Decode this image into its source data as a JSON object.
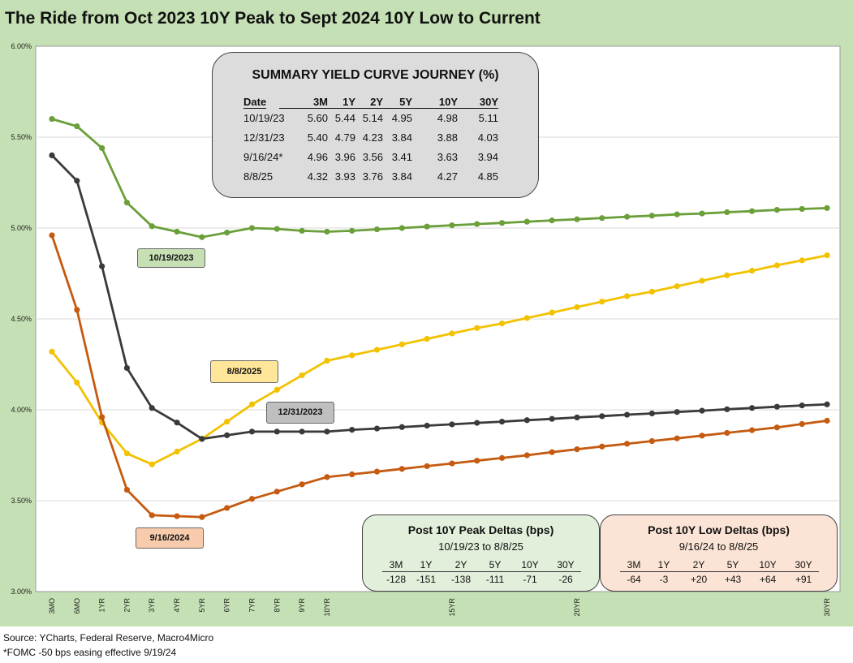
{
  "title": "The Ride from Oct 2023 10Y Peak to Sept 2024 10Y Low to Current",
  "source_line": "Source: YCharts, Federal Reserve, Macro4Micro",
  "footnote": "*FOMC -50 bps easing effective  9/19/24",
  "summary": {
    "heading": "SUMMARY YIELD CURVE JOURNEY (%)",
    "columns": [
      "Date",
      "3M",
      "1Y",
      "2Y",
      "5Y",
      "10Y",
      "30Y"
    ],
    "rows": [
      [
        "10/19/23",
        "5.60",
        "5.44",
        "5.14",
        "4.95",
        "4.98",
        "5.11"
      ],
      [
        "12/31/23",
        "5.40",
        "4.79",
        "4.23",
        "3.84",
        "3.88",
        "4.03"
      ],
      [
        "9/16/24*",
        "4.96",
        "3.96",
        "3.56",
        "3.41",
        "3.63",
        "3.94"
      ],
      [
        "8/8/25",
        "4.32",
        "3.93",
        "3.76",
        "3.84",
        "4.27",
        "4.85"
      ]
    ]
  },
  "peak_deltas": {
    "heading": "Post 10Y Peak Deltas (bps)",
    "subheading": "10/19/23 to 8/8/25",
    "columns": [
      "3M",
      "1Y",
      "2Y",
      "5Y",
      "10Y",
      "30Y"
    ],
    "values": [
      "-128",
      "-151",
      "-138",
      "-111",
      "-71",
      "-26"
    ]
  },
  "low_deltas": {
    "heading": "Post 10Y Low Deltas (bps)",
    "subheading": "9/16/24 to 8/8/25",
    "columns": [
      "3M",
      "1Y",
      "2Y",
      "5Y",
      "10Y",
      "30Y"
    ],
    "values": [
      "-64",
      "-3",
      "+20",
      "+43",
      "+64",
      "+91"
    ]
  },
  "colors": {
    "background": "#c5e0b4",
    "series_2023_10": "#6a9f3a",
    "series_2023_12": "#3a3a3a",
    "series_2024_09": "#c55a11",
    "series_2025_08": "#f2c200",
    "summary_box": "#dcdcdc",
    "peak_box": "#e2efda",
    "low_box": "#fbe4d5"
  },
  "chart_data": {
    "type": "line",
    "x": [
      "3MO",
      "6MO",
      "1YR",
      "2YR",
      "3YR",
      "4YR",
      "5YR",
      "6YR",
      "7YR",
      "8YR",
      "9YR",
      "10YR",
      "11YR",
      "12YR",
      "13YR",
      "14YR",
      "15YR",
      "16YR",
      "17YR",
      "18YR",
      "19YR",
      "20YR",
      "21YR",
      "22YR",
      "23YR",
      "24YR",
      "25YR",
      "26YR",
      "27YR",
      "28YR",
      "29YR",
      "30YR"
    ],
    "x_tick_labels": [
      "3MO",
      "6MO",
      "1YR",
      "2YR",
      "3YR",
      "4YR",
      "5YR",
      "6YR",
      "7YR",
      "8YR",
      "9YR",
      "10YR",
      "",
      "",
      "",
      "",
      "15YR",
      "",
      "",
      "",
      "",
      "20YR",
      "",
      "",
      "",
      "",
      "",
      "",
      "",
      "",
      "",
      "30YR"
    ],
    "ylim": [
      3.0,
      6.0
    ],
    "y_ticks": [
      "3.00%",
      "3.50%",
      "4.00%",
      "4.50%",
      "5.00%",
      "5.50%",
      "6.00%"
    ],
    "series": [
      {
        "name": "10/19/2023",
        "color": "#6a9f3a",
        "label_bg": "#c6e0b4",
        "values": [
          5.6,
          5.56,
          5.44,
          5.14,
          5.01,
          4.98,
          4.95,
          4.975,
          5.0,
          4.995,
          4.985,
          4.98,
          4.985,
          4.993,
          5.0,
          5.008,
          5.015,
          5.022,
          5.028,
          5.035,
          5.042,
          5.048,
          5.055,
          5.062,
          5.068,
          5.075,
          5.08,
          5.087,
          5.093,
          5.1,
          5.105,
          5.11
        ]
      },
      {
        "name": "8/8/2025",
        "color": "#f2c200",
        "label_bg": "#ffe699",
        "values": [
          4.32,
          4.15,
          3.93,
          3.76,
          3.7,
          3.77,
          3.84,
          3.935,
          4.03,
          4.11,
          4.19,
          4.27,
          4.3,
          4.33,
          4.36,
          4.39,
          4.42,
          4.45,
          4.475,
          4.505,
          4.535,
          4.565,
          4.595,
          4.625,
          4.65,
          4.68,
          4.71,
          4.74,
          4.765,
          4.795,
          4.822,
          4.85
        ]
      },
      {
        "name": "12/31/2023",
        "color": "#3a3a3a",
        "label_bg": "#bfbfbf",
        "values": [
          5.4,
          5.26,
          4.79,
          4.23,
          4.01,
          3.93,
          3.84,
          3.86,
          3.88,
          3.88,
          3.88,
          3.88,
          3.89,
          3.897,
          3.905,
          3.913,
          3.92,
          3.928,
          3.935,
          3.943,
          3.95,
          3.958,
          3.965,
          3.973,
          3.98,
          3.988,
          3.995,
          4.003,
          4.01,
          4.017,
          4.024,
          4.03
        ]
      },
      {
        "name": "9/16/2024",
        "color": "#c55a11",
        "label_bg": "#f8cbad",
        "values": [
          4.96,
          4.55,
          3.96,
          3.56,
          3.42,
          3.415,
          3.41,
          3.46,
          3.51,
          3.55,
          3.59,
          3.63,
          3.645,
          3.66,
          3.675,
          3.69,
          3.705,
          3.72,
          3.735,
          3.75,
          3.767,
          3.783,
          3.798,
          3.813,
          3.828,
          3.843,
          3.858,
          3.873,
          3.888,
          3.903,
          3.922,
          3.94
        ]
      }
    ]
  }
}
